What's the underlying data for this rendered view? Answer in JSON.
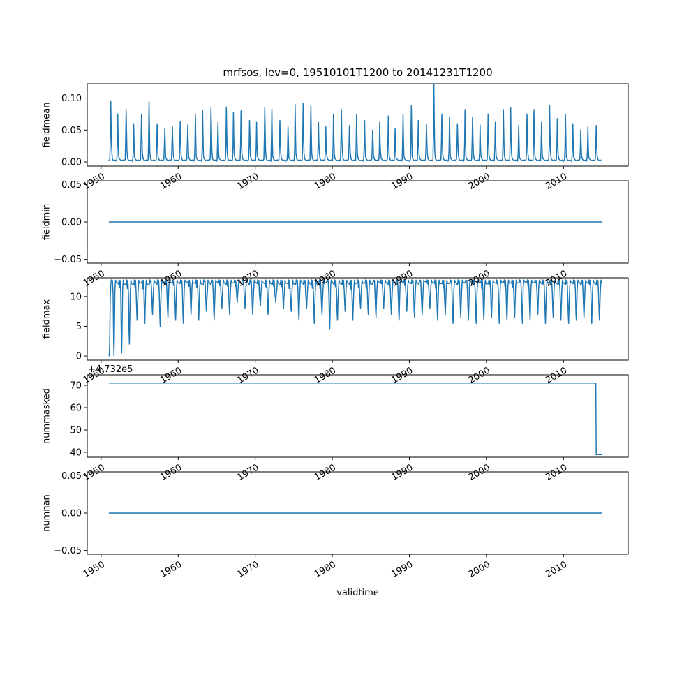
{
  "title": "mrfsos, lev=0, 19510101T1200 to 20141231T1200",
  "xlabel": "validtime",
  "background": "#ffffff",
  "axis_color": "#000000",
  "line_color": "#1f77b4",
  "x_axis": {
    "lim": [
      1948.2,
      2018.4
    ],
    "tick_values": [
      1950,
      1960,
      1970,
      1980,
      1990,
      2000,
      2010
    ],
    "tick_labels": [
      "1950",
      "1960",
      "1970",
      "1980",
      "1990",
      "2000",
      "2010"
    ],
    "tick_rotation_deg": 30
  },
  "chart_data": [
    {
      "name": "fieldmean",
      "type": "line",
      "series_type": "annual_spikes",
      "ylabel": "fieldmean",
      "ylim": [
        -0.0065,
        0.1225
      ],
      "ytick_values": [
        0.0,
        0.05,
        0.1
      ],
      "ytick_labels": [
        "0.00",
        "0.05",
        "0.10"
      ],
      "x_start": 1951.0,
      "x_end": 2015.0,
      "baseline": 0.002,
      "annual_peaks": [
        0.095,
        0.075,
        0.082,
        0.06,
        0.075,
        0.095,
        0.06,
        0.052,
        0.055,
        0.063,
        0.058,
        0.075,
        0.08,
        0.085,
        0.062,
        0.086,
        0.078,
        0.08,
        0.065,
        0.062,
        0.085,
        0.083,
        0.065,
        0.055,
        0.09,
        0.092,
        0.088,
        0.062,
        0.055,
        0.075,
        0.082,
        0.057,
        0.075,
        0.065,
        0.05,
        0.062,
        0.072,
        0.052,
        0.075,
        0.088,
        0.065,
        0.06,
        0.122,
        0.075,
        0.07,
        0.06,
        0.082,
        0.07,
        0.058,
        0.075,
        0.062,
        0.082,
        0.085,
        0.057,
        0.075,
        0.082,
        0.062,
        0.088,
        0.068,
        0.075,
        0.06,
        0.05,
        0.055,
        0.057
      ]
    },
    {
      "name": "fieldmin",
      "type": "line",
      "series_type": "constant",
      "ylabel": "fieldmin",
      "ylim": [
        -0.055,
        0.055
      ],
      "ytick_values": [
        -0.05,
        0.0,
        0.05
      ],
      "ytick_labels": [
        "−0.05",
        "0.00",
        "0.05"
      ],
      "points": [
        [
          1951.04,
          0.0
        ],
        [
          2014.97,
          0.0
        ]
      ]
    },
    {
      "name": "fieldmax",
      "type": "line",
      "series_type": "plateau_dips",
      "ylabel": "fieldmax",
      "ylim": [
        -0.7,
        13.15
      ],
      "ytick_values": [
        0,
        5,
        10
      ],
      "ytick_labels": [
        "0",
        "5",
        "10"
      ],
      "x_start": 1951.0,
      "x_end": 2015.0,
      "plateau": 12.6,
      "annual_dips": [
        0.0,
        0.5,
        2.0,
        6.0,
        5.5,
        7.0,
        5.0,
        6.5,
        6.0,
        5.5,
        7.0,
        6.0,
        7.5,
        6.0,
        8.0,
        7.0,
        9.0,
        8.0,
        7.0,
        8.5,
        7.0,
        9.0,
        8.0,
        7.5,
        6.0,
        8.0,
        5.5,
        7.0,
        4.5,
        6.0,
        7.5,
        6.0,
        8.0,
        7.0,
        6.5,
        8.0,
        7.0,
        6.0,
        7.5,
        6.5,
        7.0,
        8.0,
        6.0,
        7.0,
        5.5,
        6.5,
        6.0,
        5.5,
        6.0,
        6.5,
        5.5,
        6.0,
        6.5,
        5.5,
        6.0,
        7.0,
        5.5,
        6.5,
        6.0,
        5.5,
        6.0,
        6.5,
        5.5,
        6.0
      ]
    },
    {
      "name": "nummasked",
      "type": "line",
      "series_type": "step",
      "ylabel": "nummasked",
      "offset_text": "+4.732e5",
      "ylim": [
        37.8,
        74.7
      ],
      "ytick_values": [
        40,
        50,
        60,
        70
      ],
      "ytick_labels": [
        "40",
        "50",
        "60",
        "70"
      ],
      "points": [
        [
          1951.04,
          71
        ],
        [
          2014.2,
          71
        ],
        [
          2014.25,
          39
        ],
        [
          2015.0,
          39
        ]
      ]
    },
    {
      "name": "numnan",
      "type": "line",
      "series_type": "constant",
      "ylabel": "numnan",
      "ylim": [
        -0.055,
        0.055
      ],
      "ytick_values": [
        -0.05,
        0.0,
        0.05
      ],
      "ytick_labels": [
        "−0.05",
        "0.00",
        "0.05"
      ],
      "points": [
        [
          1951.04,
          0.0
        ],
        [
          2014.97,
          0.0
        ]
      ]
    }
  ]
}
